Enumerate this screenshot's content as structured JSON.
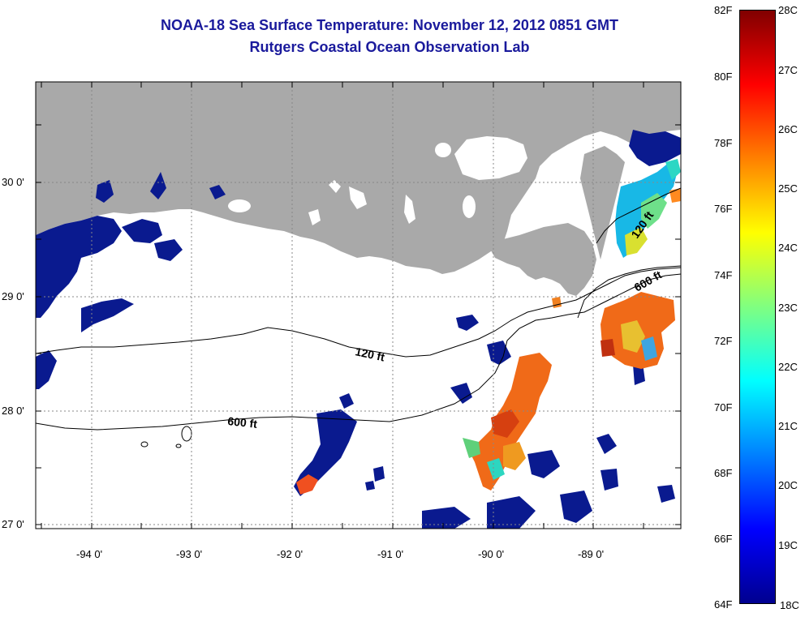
{
  "title": {
    "line1": "NOAA-18 Sea Surface Temperature:  November 12, 2012 0851 GMT",
    "line2": "Rutgers Coastal Ocean Observation Lab"
  },
  "x_ticks": [
    "-94 0'",
    "-93 0'",
    "-92 0'",
    "-91 0'",
    "-90 0'",
    "-89 0'"
  ],
  "y_ticks": [
    "30 0'",
    "29 0'",
    "28 0'",
    "27 0'"
  ],
  "contours": [
    {
      "label": "120 ft"
    },
    {
      "label": "600 ft"
    },
    {
      "label": "120 ft"
    },
    {
      "label": "600 ft"
    }
  ],
  "colorbar": {
    "fahrenheit_labels": [
      "82F",
      "80F",
      "78F",
      "76F",
      "74F",
      "72F",
      "70F",
      "68F",
      "66F",
      "64F"
    ],
    "celsius_labels": [
      "28C",
      "27C",
      "26C",
      "25C",
      "24C",
      "23C",
      "22C",
      "21C",
      "20C",
      "19C",
      "18C"
    ],
    "colors": [
      "#00008f",
      "#0000ff",
      "#0080ff",
      "#00ffff",
      "#80ff80",
      "#ffff00",
      "#ff8000",
      "#ff0000",
      "#800000"
    ]
  },
  "colors": {
    "land": "#a9a9a9",
    "title": "#1a1a9c",
    "cloud": "#ffffff"
  }
}
